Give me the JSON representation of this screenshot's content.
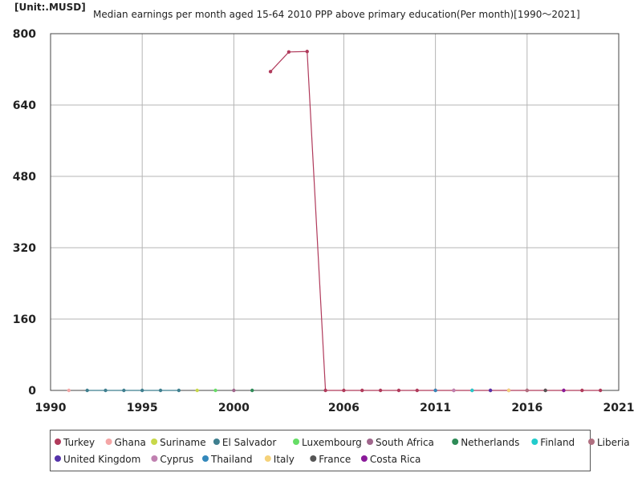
{
  "chart_data": {
    "type": "line",
    "unit_label": "[Unit:.MUSD]",
    "title": "Median earnings per month aged 15-64 2010 PPP above primary education(Per month)[1990～2021]",
    "xlim": [
      1990,
      2021
    ],
    "ylim": [
      0,
      800
    ],
    "x_ticks": [
      1990,
      1995,
      2000,
      2006,
      2011,
      2016,
      2021
    ],
    "y_ticks": [
      0,
      160,
      320,
      480,
      640,
      800
    ],
    "grid": true,
    "legend_position": "bottom",
    "series": [
      {
        "name": "Turkey",
        "color": "#b03a5b",
        "points": [
          [
            2002,
            715
          ],
          [
            2003,
            759
          ],
          [
            2004,
            760
          ],
          [
            2005,
            0
          ],
          [
            2006,
            0
          ],
          [
            2007,
            0
          ],
          [
            2008,
            0
          ],
          [
            2009,
            0
          ],
          [
            2010,
            0
          ],
          [
            2011,
            0
          ],
          [
            2012,
            0
          ],
          [
            2013,
            0
          ],
          [
            2014,
            0
          ],
          [
            2015,
            0
          ],
          [
            2016,
            0
          ],
          [
            2017,
            0
          ],
          [
            2018,
            0
          ],
          [
            2019,
            0
          ],
          [
            2020,
            0
          ]
        ]
      },
      {
        "name": "Ghana",
        "color": "#f4a6a6",
        "points": [
          [
            1991,
            0
          ]
        ]
      },
      {
        "name": "Suriname",
        "color": "#c8d84a",
        "points": [
          [
            1998,
            0
          ]
        ]
      },
      {
        "name": "El Salvador",
        "color": "#3f7f8f",
        "points": [
          [
            1992,
            0
          ],
          [
            1993,
            0
          ],
          [
            1994,
            0
          ],
          [
            1995,
            0
          ],
          [
            1996,
            0
          ],
          [
            1997,
            0
          ]
        ]
      },
      {
        "name": "Luxembourg",
        "color": "#66dd66",
        "points": [
          [
            1999,
            0
          ]
        ]
      },
      {
        "name": "South Africa",
        "color": "#a0668c",
        "points": [
          [
            2000,
            0
          ]
        ]
      },
      {
        "name": "Netherlands",
        "color": "#2e8b57",
        "points": [
          [
            2001,
            0
          ]
        ]
      },
      {
        "name": "Finland",
        "color": "#22cccc",
        "points": [
          [
            2013,
            0
          ]
        ]
      },
      {
        "name": "Liberia",
        "color": "#b07080",
        "points": [
          [
            2016,
            0
          ]
        ]
      },
      {
        "name": "United Kingdom",
        "color": "#5533aa",
        "points": [
          [
            2014,
            0
          ]
        ]
      },
      {
        "name": "Cyprus",
        "color": "#c080b0",
        "points": [
          [
            2012,
            0
          ]
        ]
      },
      {
        "name": "Thailand",
        "color": "#3388bb",
        "points": [
          [
            2011,
            0
          ]
        ]
      },
      {
        "name": "Italy",
        "color": "#f5d27a",
        "points": [
          [
            2015,
            0
          ]
        ]
      },
      {
        "name": "France",
        "color": "#555555",
        "points": [
          [
            2017,
            0
          ]
        ]
      },
      {
        "name": "Costa Rica",
        "color": "#8a1a9a",
        "points": [
          [
            2018,
            0
          ]
        ]
      }
    ]
  }
}
